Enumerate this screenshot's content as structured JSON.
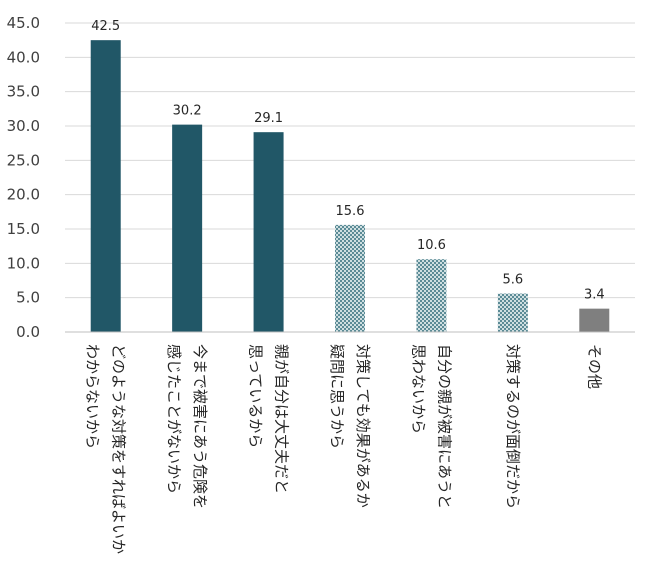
{
  "chart_data": {
    "type": "bar",
    "title": "",
    "xlabel": "",
    "ylabel": "",
    "ylim": [
      0,
      45
    ],
    "yticks": [
      "0.0",
      "5.0",
      "10.0",
      "15.0",
      "20.0",
      "25.0",
      "30.0",
      "35.0",
      "40.0",
      "45.0"
    ],
    "grid": true,
    "legend": "none",
    "categories": [
      [
        "どのような対策をすればよいか",
        "わからないから"
      ],
      [
        "今まで被害にあう危険を",
        "感じたことがないから"
      ],
      [
        "親が自分は大丈夫だと",
        "思っているから"
      ],
      [
        "対策しても効果があるか",
        "疑問に思うから"
      ],
      [
        "自分の親が被害にあうと",
        "思わないから"
      ],
      [
        "対策するのが面倒だから"
      ],
      [
        "その他"
      ]
    ],
    "values": [
      42.5,
      30.2,
      29.1,
      15.6,
      10.6,
      5.6,
      3.4
    ],
    "value_labels": [
      "42.5",
      "30.2",
      "29.1",
      "15.6",
      "10.6",
      "5.6",
      "3.4"
    ],
    "bar_styles": [
      "solid",
      "solid",
      "solid",
      "pattern",
      "pattern",
      "pattern",
      "gray"
    ],
    "colors": {
      "solid": "#215767",
      "pattern_light": "#cfdfe1",
      "pattern_dark": "#5b8b96",
      "gray": "#7f7f7f",
      "axis": "#bfbfbf",
      "grid": "#d9d9d9"
    }
  }
}
